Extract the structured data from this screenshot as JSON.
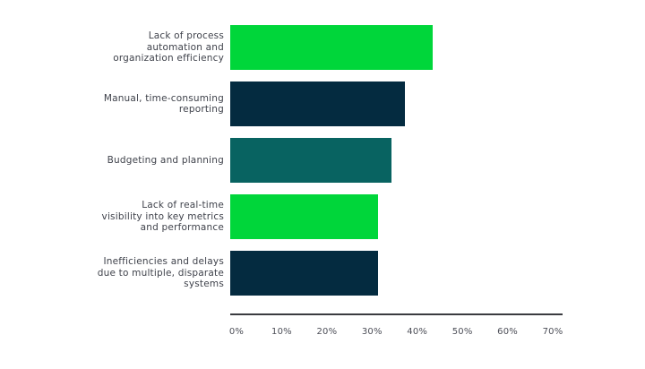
{
  "chart_data": {
    "type": "bar",
    "orientation": "horizontal",
    "xlabel": "",
    "ylabel": "",
    "xlim": [
      0,
      70
    ],
    "x_ticks": [
      "0%",
      "10%",
      "20%",
      "30%",
      "40%",
      "50%",
      "60%",
      "70%"
    ],
    "grid": false,
    "legend": null,
    "unit": "%",
    "categories": [
      "Lack of process automation and organization efficiency",
      "Manual, time-consuming reporting",
      "Budgeting and planning",
      "Lack of real-time visibility into key metrics and performance",
      "Inefficiencies and delays due to multiple, disparate systems"
    ],
    "values": [
      44,
      38,
      35,
      32,
      32
    ],
    "items": [
      {
        "label": "Lack of process automation and organization efficiency",
        "lines": [
          "Lack of process",
          "automation and",
          "organization efficiency"
        ],
        "value": 44,
        "color": "#00d63a"
      },
      {
        "label": "Manual, time-consuming reporting",
        "lines": [
          "Manual, time-consuming",
          "reporting"
        ],
        "value": 38,
        "color": "#042b40"
      },
      {
        "label": "Budgeting and planning",
        "lines": [
          "Budgeting and planning"
        ],
        "value": 35,
        "color": "#086361"
      },
      {
        "label": "Lack of real-time visibility into key metrics and performance",
        "lines": [
          "Lack of real-time",
          "visibility into key metrics",
          "and performance"
        ],
        "value": 32,
        "color": "#00d63a"
      },
      {
        "label": "Inefficiencies and delays due to multiple, disparate systems",
        "lines": [
          "Inefficiencies and delays",
          "due to multiple, disparate",
          "systems"
        ],
        "value": 32,
        "color": "#042b40"
      }
    ],
    "colors": {
      "bright_green": "#00d63a",
      "dark_navy": "#042b40",
      "teal": "#086361",
      "axis_line": "#3a3b40",
      "label_text": "#3f424b",
      "tick_text": "#4c4e57"
    }
  }
}
